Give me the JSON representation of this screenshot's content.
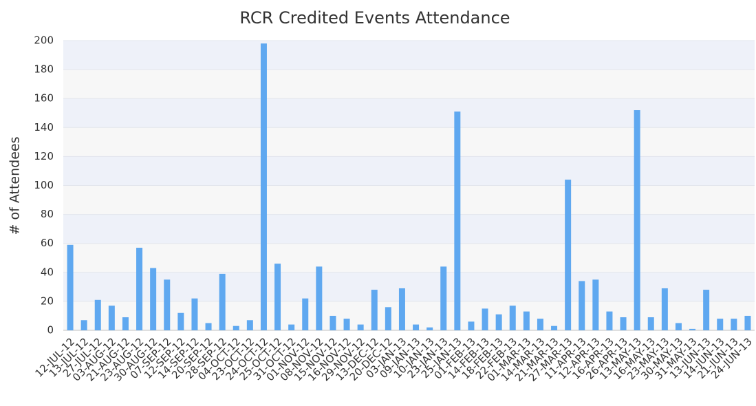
{
  "chart_data": {
    "type": "bar",
    "title": "RCR Credited Events Attendance",
    "y_label": "# of Attendees",
    "categories": [
      "12-JUL-12",
      "13-JUL-12",
      "27-JUL-12",
      "03-AUG-12",
      "21-AUG-12",
      "23-AUG-12",
      "30-AUG-12",
      "07-SEP-12",
      "12-SEP-12",
      "14-SEP-12",
      "20-SEP-12",
      "28-SEP-12",
      "04-OCT-12",
      "23-OCT-12",
      "24-OCT-12",
      "25-OCT-12",
      "31-OCT-12",
      "01-NOV-12",
      "08-NOV-12",
      "15-NOV-12",
      "16-NOV-12",
      "29-NOV-12",
      "13-DEC-12",
      "20-DEC-12",
      "03-JAN-13",
      "09-JAN-13",
      "10-JAN-13",
      "23-JAN-13",
      "25-JAN-13",
      "01-FEB-13",
      "14-FEB-13",
      "18-FEB-13",
      "22-FEB-13",
      "01-MAR-13",
      "14-MAR-13",
      "21-MAR-13",
      "27-MAR-13",
      "11-APR-13",
      "12-APR-13",
      "16-APR-13",
      "26-APR-13",
      "13-MAY-13",
      "16-MAY-13",
      "23-MAY-13",
      "30-MAY-13",
      "31-MAY-13",
      "13-JUN-13",
      "14-JUN-13",
      "21-JUN-13",
      "24-JUN-13"
    ],
    "values": [
      59,
      7,
      21,
      17,
      9,
      57,
      43,
      35,
      12,
      22,
      5,
      39,
      3,
      7,
      198,
      46,
      4,
      22,
      44,
      10,
      8,
      4,
      28,
      16,
      29,
      4,
      2,
      44,
      151,
      6,
      15,
      11,
      17,
      13,
      8,
      3,
      104,
      34,
      35,
      13,
      9,
      152,
      9,
      29,
      5,
      1,
      28,
      8,
      8,
      10
    ],
    "color": "#5fa8f0",
    "ylim": [
      0,
      200
    ],
    "yticks": [
      0,
      20,
      40,
      60,
      80,
      100,
      120,
      140,
      160,
      180,
      200
    ],
    "grid": true
  }
}
